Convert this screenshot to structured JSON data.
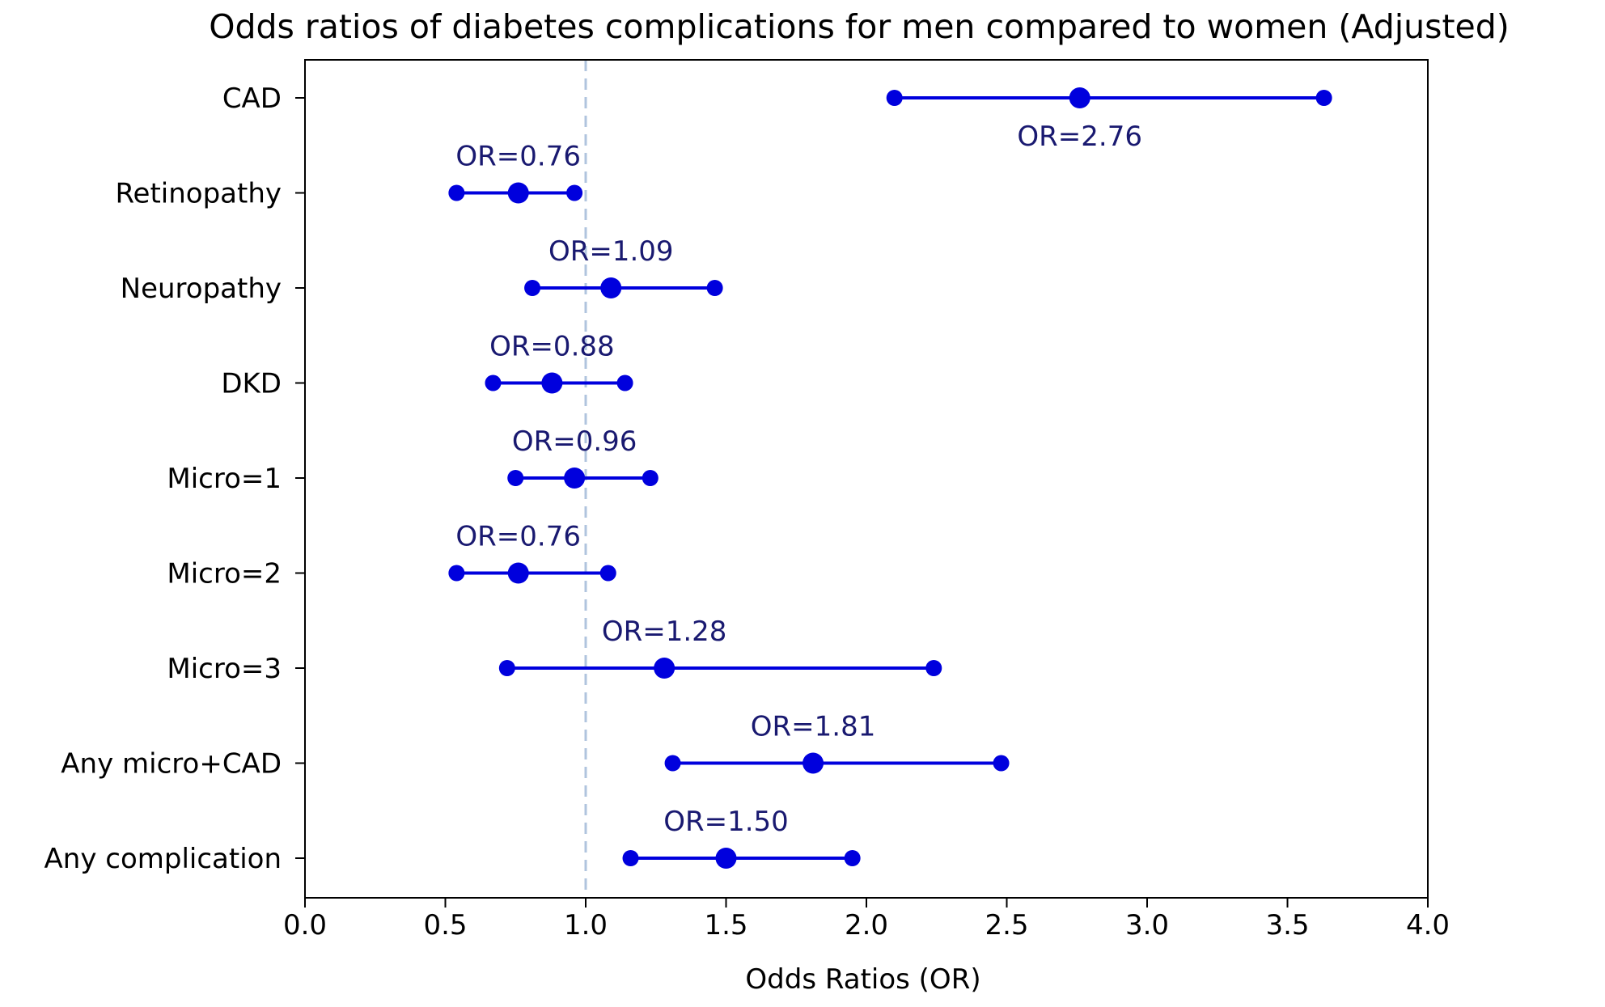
{
  "chart_data": {
    "type": "scatter",
    "subtype": "forest-plot",
    "title": "Odds ratios of diabetes complications for men compared to women (Adjusted)",
    "xlabel": "Odds Ratios (OR)",
    "ylabel": "",
    "xlim": [
      0.0,
      4.0
    ],
    "xticks": [
      "0.0",
      "0.5",
      "1.0",
      "1.5",
      "2.0",
      "2.5",
      "3.0",
      "3.5",
      "4.0"
    ],
    "xtick_values": [
      0.0,
      0.5,
      1.0,
      1.5,
      2.0,
      2.5,
      3.0,
      3.5,
      4.0
    ],
    "reference_line": 1.0,
    "grid": false,
    "colors": {
      "marker": "#0000dd",
      "label": "#191970",
      "reference": "#b0c4de",
      "axis": "#000000"
    },
    "rows": [
      {
        "category": "CAD",
        "or": 2.76,
        "lower": 2.1,
        "upper": 3.63,
        "label": "OR=2.76",
        "label_position": "below"
      },
      {
        "category": "Retinopathy",
        "or": 0.76,
        "lower": 0.54,
        "upper": 0.96,
        "label": "OR=0.76",
        "label_position": "above"
      },
      {
        "category": "Neuropathy",
        "or": 1.09,
        "lower": 0.81,
        "upper": 1.46,
        "label": "OR=1.09",
        "label_position": "above"
      },
      {
        "category": "DKD",
        "or": 0.88,
        "lower": 0.67,
        "upper": 1.14,
        "label": "OR=0.88",
        "label_position": "above"
      },
      {
        "category": "Micro=1",
        "or": 0.96,
        "lower": 0.75,
        "upper": 1.23,
        "label": "OR=0.96",
        "label_position": "above"
      },
      {
        "category": "Micro=2",
        "or": 0.76,
        "lower": 0.54,
        "upper": 1.08,
        "label": "OR=0.76",
        "label_position": "above"
      },
      {
        "category": "Micro=3",
        "or": 1.28,
        "lower": 0.72,
        "upper": 2.24,
        "label": "OR=1.28",
        "label_position": "above"
      },
      {
        "category": "Any micro+CAD",
        "or": 1.81,
        "lower": 1.31,
        "upper": 2.48,
        "label": "OR=1.81",
        "label_position": "above"
      },
      {
        "category": "Any complication",
        "or": 1.5,
        "lower": 1.16,
        "upper": 1.95,
        "label": "OR=1.50",
        "label_position": "above"
      }
    ]
  }
}
